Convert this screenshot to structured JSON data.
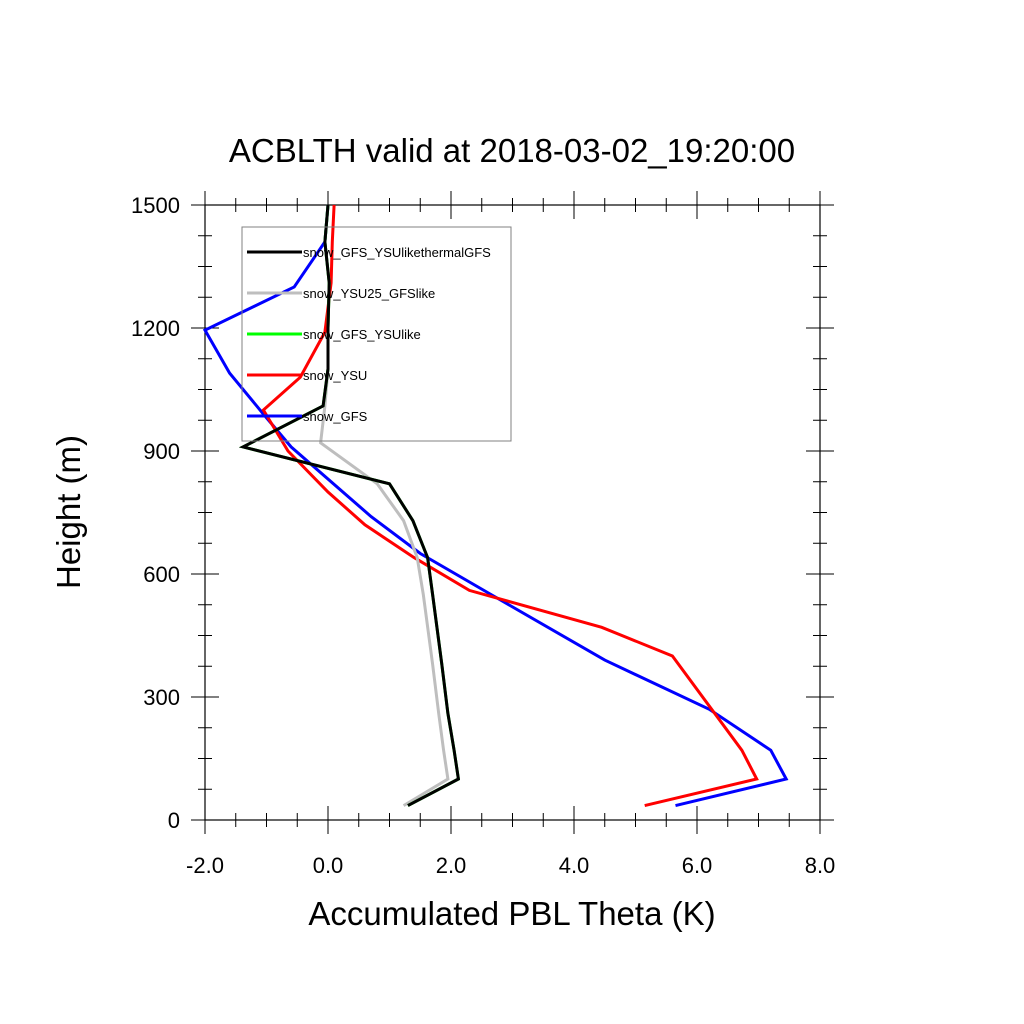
{
  "chart_data": {
    "type": "line",
    "title": "ACBLTH valid at 2018-03-02_19:20:00",
    "xlabel": "Accumulated PBL Theta (K)",
    "ylabel": "Height (m)",
    "xlim": [
      -2.0,
      8.0
    ],
    "ylim": [
      0,
      1500
    ],
    "xticks": [
      -2.0,
      0.0,
      2.0,
      4.0,
      6.0,
      8.0
    ],
    "xtick_labels": [
      "-2.0",
      "0.0",
      "2.0",
      "4.0",
      "6.0",
      "8.0"
    ],
    "yticks": [
      0,
      300,
      600,
      900,
      1200,
      1500
    ],
    "ytick_labels": [
      "0",
      "300",
      "600",
      "900",
      "1200",
      "1500"
    ],
    "grid": false,
    "legend_position": "top-left",
    "series": [
      {
        "name": "snow_GFS_YSUlikethermalGFS",
        "color": "#000000",
        "points": [
          [
            1.3,
            35
          ],
          [
            2.12,
            100
          ],
          [
            2.05,
            170
          ],
          [
            1.95,
            260
          ],
          [
            1.85,
            380
          ],
          [
            1.7,
            550
          ],
          [
            1.62,
            640
          ],
          [
            1.38,
            730
          ],
          [
            1.0,
            820
          ],
          [
            -1.38,
            910
          ],
          [
            -0.08,
            1010
          ],
          [
            0.0,
            1100
          ],
          [
            0.0,
            1200
          ],
          [
            0.02,
            1310
          ],
          [
            -0.05,
            1410
          ],
          [
            0.0,
            1500
          ]
        ]
      },
      {
        "name": "snow_YSU25_GFSlike",
        "color": "#bebebe",
        "points": [
          [
            1.23,
            35
          ],
          [
            1.95,
            100
          ],
          [
            1.88,
            170
          ],
          [
            1.8,
            260
          ],
          [
            1.7,
            380
          ],
          [
            1.55,
            550
          ],
          [
            1.45,
            640
          ],
          [
            1.23,
            730
          ],
          [
            0.8,
            820
          ],
          [
            -0.12,
            920
          ],
          [
            -0.05,
            1010
          ],
          [
            0.0,
            1100
          ],
          [
            0.0,
            1200
          ],
          [
            0.02,
            1310
          ],
          [
            -0.05,
            1410
          ],
          [
            0.0,
            1500
          ]
        ]
      },
      {
        "name": "snow_GFS_YSUlike",
        "color": "#00ff00",
        "points": [
          [
            1.3,
            35
          ],
          [
            2.12,
            100
          ],
          [
            2.05,
            170
          ],
          [
            1.95,
            260
          ],
          [
            1.85,
            380
          ],
          [
            1.7,
            550
          ],
          [
            1.62,
            640
          ],
          [
            1.38,
            730
          ],
          [
            1.0,
            820
          ],
          [
            -1.38,
            910
          ],
          [
            -0.08,
            1010
          ],
          [
            0.0,
            1100
          ],
          [
            0.0,
            1200
          ],
          [
            0.02,
            1310
          ],
          [
            -0.05,
            1410
          ],
          [
            0.0,
            1500
          ]
        ]
      },
      {
        "name": "snow_YSU",
        "color": "#ff0000",
        "points": [
          [
            5.15,
            35
          ],
          [
            6.97,
            100
          ],
          [
            6.73,
            170
          ],
          [
            5.6,
            400
          ],
          [
            4.45,
            470
          ],
          [
            2.3,
            560
          ],
          [
            1.4,
            640
          ],
          [
            0.6,
            720
          ],
          [
            0.0,
            800
          ],
          [
            -0.65,
            900
          ],
          [
            -1.05,
            1000
          ],
          [
            -0.45,
            1080
          ],
          [
            -0.05,
            1190
          ],
          [
            0.05,
            1310
          ],
          [
            0.07,
            1410
          ],
          [
            0.1,
            1500
          ]
        ]
      },
      {
        "name": "snow_GFS",
        "color": "#0000ff",
        "points": [
          [
            5.65,
            35
          ],
          [
            7.45,
            100
          ],
          [
            7.2,
            170
          ],
          [
            6.2,
            270
          ],
          [
            4.5,
            390
          ],
          [
            2.65,
            550
          ],
          [
            1.5,
            650
          ],
          [
            0.7,
            740
          ],
          [
            -0.6,
            910
          ],
          [
            -1.05,
            990
          ],
          [
            -1.6,
            1090
          ],
          [
            -2.0,
            1195
          ],
          [
            -0.55,
            1300
          ],
          [
            -0.05,
            1410
          ],
          [
            0.0,
            1500
          ]
        ]
      }
    ]
  }
}
